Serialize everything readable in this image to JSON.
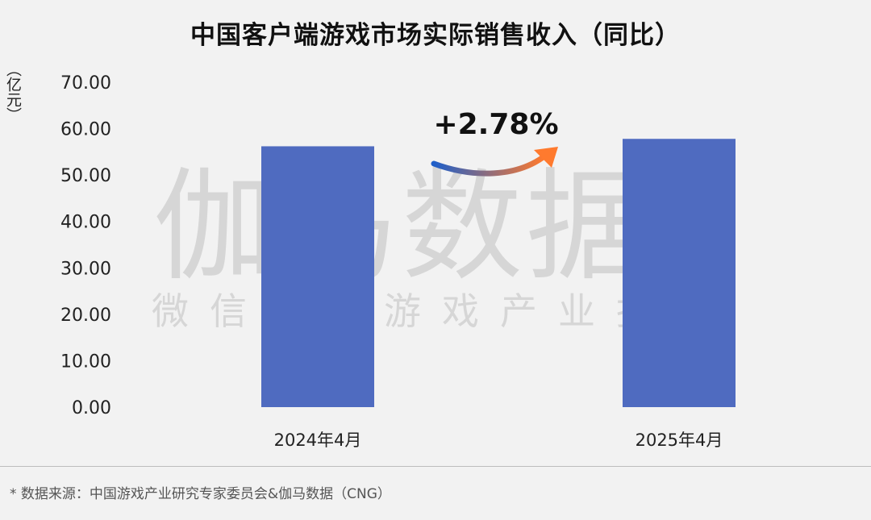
{
  "chart_data": {
    "type": "bar",
    "title": "中国客户端游戏市场实际销售收入（同比）",
    "ylabel": "（亿元）",
    "categories": [
      "2024年4月",
      "2025年4月"
    ],
    "values": [
      56.2,
      57.8
    ],
    "ylim": [
      0,
      70
    ],
    "yticks": [
      "0.00",
      "10.00",
      "20.00",
      "30.00",
      "40.00",
      "50.00",
      "60.00",
      "70.00"
    ],
    "annotation": "+2.78%",
    "bar_color": "#4f6bc0",
    "grid": false
  },
  "watermark": {
    "main": "伽马数据",
    "sub": "微信号：游戏产业报告"
  },
  "source": "* 数据来源：中国游戏产业研究专家委员会&伽马数据（CNG）",
  "colors": {
    "background": "#f2f2f2",
    "arrow_start": "#1f5fc9",
    "arrow_end": "#ff7a2e"
  }
}
